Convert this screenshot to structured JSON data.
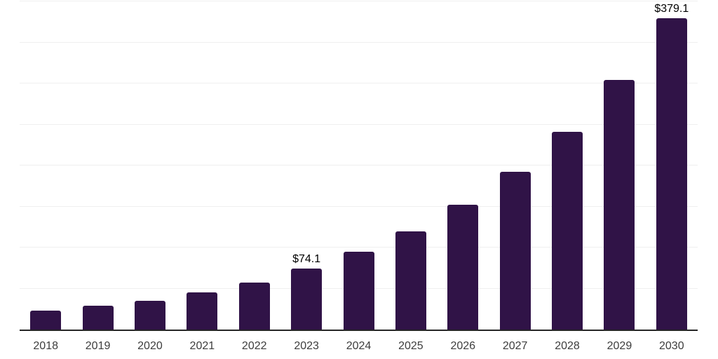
{
  "chart_data": {
    "type": "bar",
    "title": "",
    "xlabel": "",
    "ylabel": "",
    "categories": [
      "2018",
      "2019",
      "2020",
      "2021",
      "2022",
      "2023",
      "2024",
      "2025",
      "2026",
      "2027",
      "2028",
      "2029",
      "2030"
    ],
    "values": [
      23.1,
      29.4,
      35.1,
      45.7,
      57.6,
      74.1,
      94.6,
      119.5,
      151.8,
      192.0,
      241.2,
      303.9,
      379.1
    ],
    "value_labels": [
      "",
      "",
      "",
      "",
      "",
      "$74.1",
      "",
      "",
      "",
      "",
      "",
      "",
      "$379.1"
    ],
    "ylim": [
      0,
      400
    ],
    "gridline_step": 50,
    "grid": true,
    "legend": false,
    "y_axis_labels_visible": false,
    "bar_color": "#301347",
    "axis_line_color": "#262626",
    "gridline_color": "#efefef",
    "tick_label_color": "#3d3d3d",
    "value_label_color": "#000000",
    "background_color": "#ffffff"
  }
}
